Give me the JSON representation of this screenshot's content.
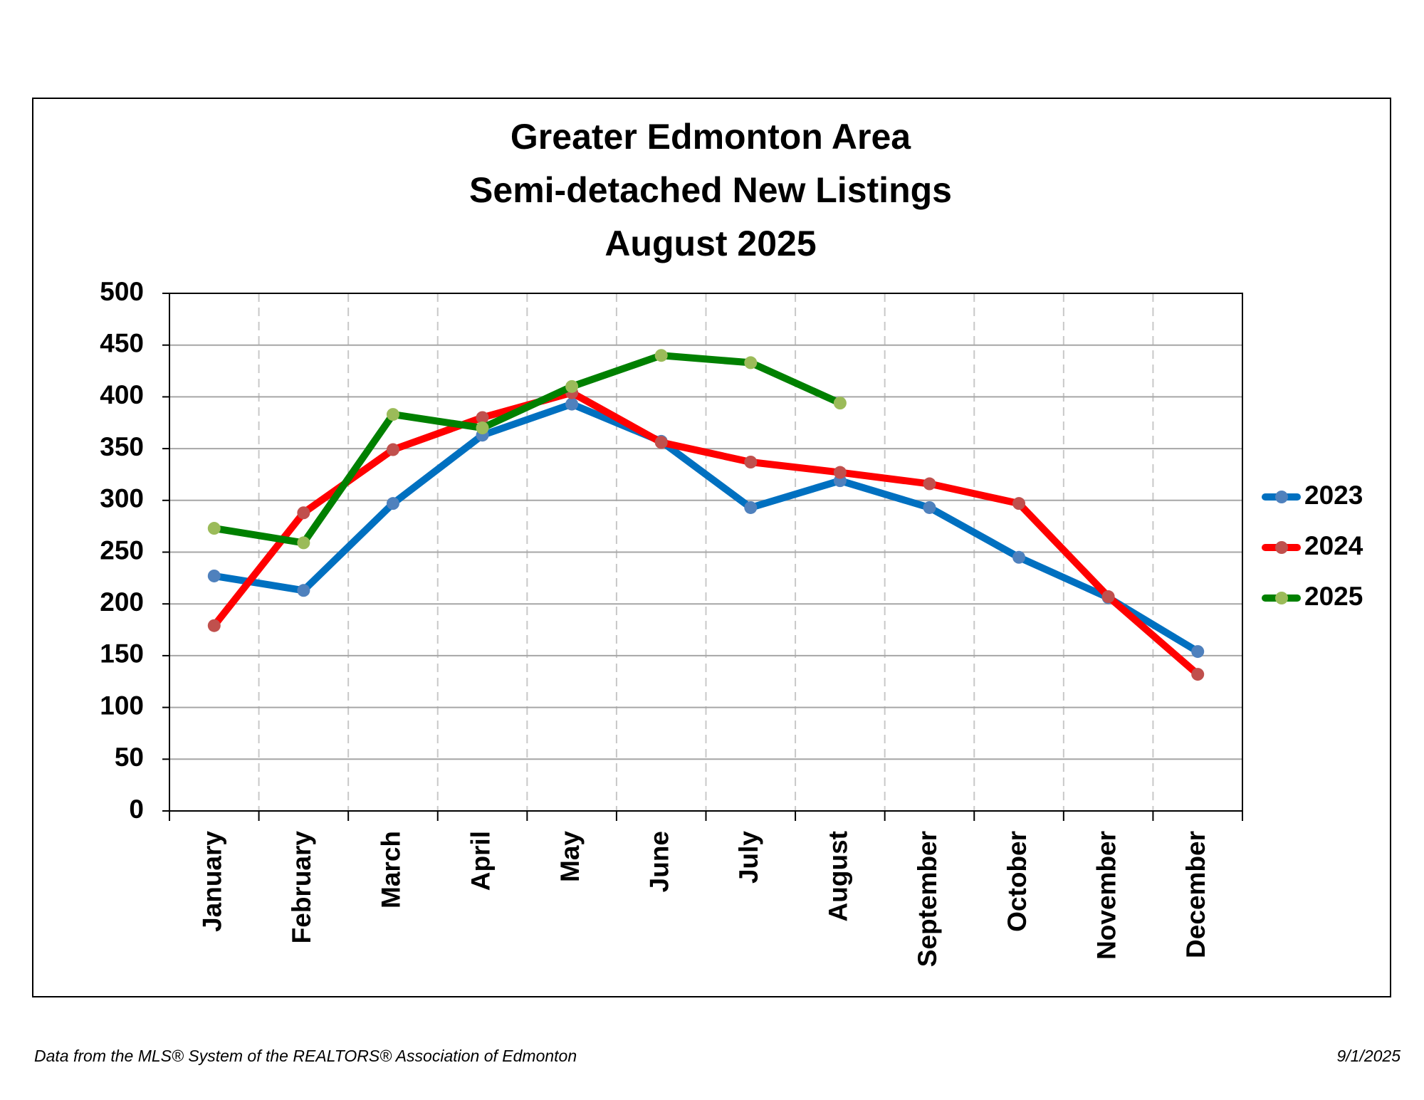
{
  "chart_data": {
    "type": "line",
    "title_lines": [
      "Greater Edmonton Area",
      "Semi-detached New Listings",
      "August 2025"
    ],
    "categories": [
      "January",
      "February",
      "March",
      "April",
      "May",
      "June",
      "July",
      "August",
      "September",
      "October",
      "November",
      "December"
    ],
    "series": [
      {
        "name": "2023",
        "color": "#0070c0",
        "marker_color": "#4f81bd",
        "values": [
          227,
          213,
          297,
          363,
          393,
          357,
          293,
          319,
          293,
          245,
          206,
          154
        ]
      },
      {
        "name": "2024",
        "color": "#ff0000",
        "marker_color": "#c0504d",
        "values": [
          179,
          288,
          349,
          380,
          404,
          356,
          337,
          327,
          316,
          297,
          207,
          132
        ]
      },
      {
        "name": "2025",
        "color": "#008000",
        "marker_color": "#9bbb59",
        "values": [
          273,
          259,
          383,
          370,
          410,
          440,
          433,
          394,
          null,
          null,
          null,
          null
        ]
      }
    ],
    "ylim": [
      0,
      500
    ],
    "yticks": [
      0,
      50,
      100,
      150,
      200,
      250,
      300,
      350,
      400,
      450,
      500
    ],
    "grid": true,
    "legend": "right",
    "footer_source": "Data from the MLS® System of the REALTORS® Association of Edmonton",
    "footer_date": "9/1/2025"
  }
}
